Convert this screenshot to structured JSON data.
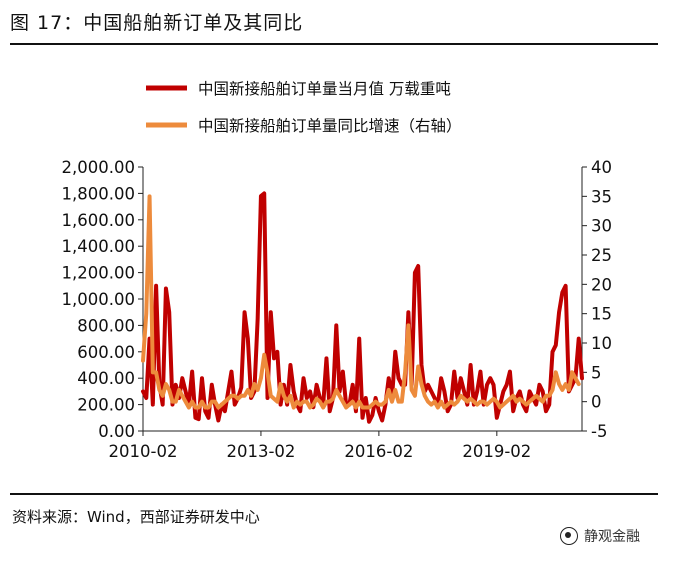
{
  "header": {
    "title": "图 17：中国船舶新订单及其同比"
  },
  "footer": {
    "source": "资料来源：Wind，西部证券研发中心",
    "watermark": "静观金融"
  },
  "chart_data": {
    "type": "line",
    "x_tick_labels": [
      "2010-02",
      "2013-02",
      "2016-02",
      "2019-02"
    ],
    "left_axis": {
      "min": 0,
      "max": 2000,
      "ticks": [
        "0.00",
        "200.00",
        "400.00",
        "600.00",
        "800.00",
        "1,000.00",
        "1,200.00",
        "1,400.00",
        "1,600.00",
        "1,800.00",
        "2,000.00"
      ]
    },
    "right_axis": {
      "min": -5,
      "max": 40,
      "ticks": [
        "-5",
        "0",
        "5",
        "10",
        "15",
        "20",
        "25",
        "30",
        "35",
        "40"
      ]
    },
    "legend_position": "top",
    "series": [
      {
        "name": "中国新接船舶订单量当月值 万载重吨",
        "axis": "left",
        "color": "#c00000",
        "values": [
          300,
          250,
          700,
          200,
          1100,
          350,
          200,
          1080,
          900,
          200,
          350,
          250,
          400,
          300,
          200,
          450,
          100,
          90,
          400,
          150,
          100,
          350,
          200,
          80,
          200,
          150,
          300,
          450,
          200,
          250,
          330,
          900,
          700,
          250,
          300,
          850,
          1780,
          1800,
          250,
          900,
          550,
          600,
          200,
          350,
          200,
          500,
          300,
          200,
          150,
          400,
          250,
          300,
          180,
          350,
          250,
          200,
          550,
          150,
          250,
          800,
          300,
          450,
          200,
          200,
          350,
          150,
          700,
          100,
          250,
          70,
          120,
          250,
          150,
          80,
          200,
          400,
          250,
          600,
          400,
          350,
          350,
          900,
          350,
          1200,
          1250,
          500,
          300,
          350,
          300,
          250,
          200,
          400,
          300,
          150,
          200,
          450,
          250,
          400,
          300,
          200,
          500,
          200,
          300,
          450,
          200,
          350,
          400,
          350,
          100,
          200,
          300,
          350,
          450,
          150,
          250,
          300,
          200,
          150,
          300,
          250,
          200,
          350,
          300,
          150,
          200,
          600,
          650,
          900,
          1050,
          1100,
          300,
          350,
          400,
          700,
          400
        ]
      },
      {
        "name": "中国新接船舶订单量同比增速（右轴）",
        "axis": "right",
        "color": "#ed8b3c",
        "values": [
          7,
          15,
          35,
          5,
          5,
          2,
          1,
          3,
          2,
          0,
          0,
          2,
          1,
          0,
          -1,
          0,
          -1,
          -1,
          0,
          -1,
          -1,
          0,
          0,
          -1,
          -0.5,
          0,
          0.5,
          1,
          1,
          0.5,
          1,
          1,
          2,
          1,
          3,
          2,
          4,
          8,
          5,
          1,
          0.5,
          0,
          3,
          1,
          0,
          1,
          -1,
          0,
          -0.5,
          0,
          0,
          -1,
          -0.5,
          0.5,
          0,
          -1,
          0,
          0,
          0.5,
          2,
          1,
          0,
          -1,
          -0.5,
          0,
          -1,
          0,
          -1,
          -1,
          -1,
          -0.5,
          0,
          -0.5,
          -0.5,
          0,
          2,
          0,
          2,
          0,
          0,
          5,
          13,
          2,
          1,
          6,
          3,
          1,
          0,
          -0.5,
          0,
          -1,
          0,
          -1,
          -0.5,
          0,
          -0.5,
          0,
          1,
          0.5,
          0,
          0.5,
          0,
          -0.5,
          0,
          0,
          -0.5,
          0,
          0.5,
          0,
          -1,
          -0.5,
          0,
          0.5,
          1,
          0,
          0.5,
          0,
          -0.5,
          0,
          0.5,
          1,
          0.5,
          0,
          1,
          1,
          2,
          5,
          3,
          2,
          3,
          2,
          5,
          4,
          3
        ]
      }
    ]
  }
}
